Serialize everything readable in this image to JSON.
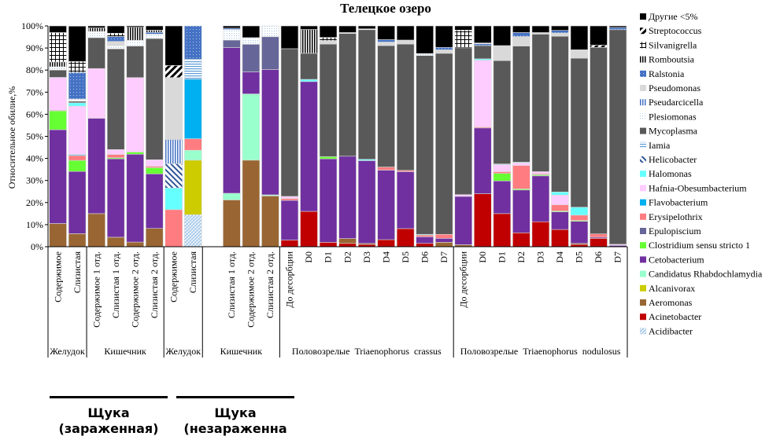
{
  "chart_data": {
    "type": "bar",
    "stacked": true,
    "title": "Телецкое озеро",
    "ylabel": "Относительное обилие,%",
    "xlabel": "",
    "ylim": [
      0,
      100
    ],
    "yticks": [
      "0%",
      "10%",
      "20%",
      "30%",
      "40%",
      "50%",
      "60%",
      "70%",
      "80%",
      "90%",
      "100%"
    ],
    "legend_position": "right",
    "legend": [
      {
        "name": "Другие <5%",
        "color": "#000000",
        "pattern": "solid"
      },
      {
        "name": "Streptococcus",
        "color": "#000000",
        "pattern": "diag"
      },
      {
        "name": "Silvanigrella",
        "color": "#000000",
        "pattern": "grid"
      },
      {
        "name": "Romboutsia",
        "color": "#000000",
        "pattern": "vlines"
      },
      {
        "name": "Ralstonia",
        "color": "#4472c4",
        "pattern": "dots"
      },
      {
        "name": "Pseudomonas",
        "color": "#d9d9d9",
        "pattern": "solid"
      },
      {
        "name": "Pseudarcicella",
        "color": "#4472c4",
        "pattern": "vlines"
      },
      {
        "name": "Plesiomonas",
        "color": "#9dc3e6",
        "pattern": "sparsedots"
      },
      {
        "name": "Mycoplasma",
        "color": "#595959",
        "pattern": "solid"
      },
      {
        "name": "Iamia",
        "color": "#5b9bd5",
        "pattern": "hlines"
      },
      {
        "name": "Helicobacter",
        "color": "#2f5597",
        "pattern": "backdiag"
      },
      {
        "name": "Halomonas",
        "color": "#66ffff",
        "pattern": "solid"
      },
      {
        "name": "Hafnia-Obesumbacterium",
        "color": "#ffccff",
        "pattern": "solid"
      },
      {
        "name": "Flavobacterium",
        "color": "#00b0f0",
        "pattern": "solid"
      },
      {
        "name": "Erysipelothrix",
        "color": "#ff7c80",
        "pattern": "solid"
      },
      {
        "name": "Epulopiscium",
        "color": "#666699",
        "pattern": "solid"
      },
      {
        "name": "Clostridium sensu stricto 1",
        "color": "#66ff33",
        "pattern": "solid"
      },
      {
        "name": "Cetobacterium",
        "color": "#7030a0",
        "pattern": "solid"
      },
      {
        "name": "Candidatus Rhabdochlamydia",
        "color": "#99ffcc",
        "pattern": "solid"
      },
      {
        "name": "Alcanivorax",
        "color": "#cccc00",
        "pattern": "solid"
      },
      {
        "name": "Aeromonas",
        "color": "#996633",
        "pattern": "solid"
      },
      {
        "name": "Acinetobacter",
        "color": "#c00000",
        "pattern": "solid"
      },
      {
        "name": "Acidibacter",
        "color": "#9dc3e6",
        "pattern": "crosshatch"
      }
    ],
    "categories": [
      "Содержимое",
      "Слизистая",
      "Содержимое 1 отд.",
      "Слизистая 1 отд.",
      "Содержимое 2 отд.",
      "Слизистая 2 отд.",
      "Содержимое",
      "Слизистая",
      "",
      "Слизистая 1 отд.",
      "Содержимое 2 отд.",
      "Слизистая 2 отд.",
      "До десорбции",
      "D0",
      "D1",
      "D2",
      "D3",
      "D4",
      "D5",
      "D6",
      "D7",
      "До десорбции",
      "D0",
      "D1",
      "D2",
      "D3",
      "D4",
      "D5",
      "D6",
      "D7"
    ],
    "groups": [
      {
        "label": "Желудок",
        "count": 2
      },
      {
        "label": "Кишечник",
        "count": 4
      },
      {
        "label": "Желудок",
        "count": 2
      },
      {
        "label": "Кишечник",
        "count": 4
      },
      {
        "label": "Половозрелые  Triaenophorus  crassus",
        "count": 9
      },
      {
        "label": "Половозрелые  Triaenophorus  nodulosus",
        "count": 9
      }
    ],
    "bars": [
      [
        [
          "Aeromonas",
          10.5
        ],
        [
          "Cetobacterium",
          42.5
        ],
        [
          "Clostridium sensu stricto 1",
          8.5
        ],
        [
          "Erysipelothrix",
          0.3
        ],
        [
          "Hafnia-Obesumbacterium",
          14.9
        ],
        [
          "Mycoplasma",
          3.3
        ],
        [
          "Plesiomonas",
          1.5
        ],
        [
          "Romboutsia",
          2.2
        ],
        [
          "Silvanigrella",
          13.3
        ],
        [
          "Другие <5%",
          3.0
        ]
      ],
      [
        [
          "Aeromonas",
          5.9
        ],
        [
          "Cetobacterium",
          28.2
        ],
        [
          "Clostridium sensu stricto 1",
          5.0
        ],
        [
          "Erysipelothrix",
          2.2
        ],
        [
          "Flavobacterium",
          0.4
        ],
        [
          "Hafnia-Obesumbacterium",
          22.0
        ],
        [
          "Halomonas",
          1.5
        ],
        [
          "Mycoplasma",
          0.7
        ],
        [
          "Plesiomonas",
          1.0
        ],
        [
          "Ralstonia",
          12.0
        ],
        [
          "Silvanigrella",
          5.0
        ],
        [
          "Другие <5%",
          16.0
        ]
      ],
      [
        [
          "Aeromonas",
          15.0
        ],
        [
          "Cetobacterium",
          43.2
        ],
        [
          "Hafnia-Obesumbacterium",
          22.5
        ],
        [
          "Mycoplasma",
          14.0
        ],
        [
          "Plesiomonas",
          2.8
        ],
        [
          "Romboutsia",
          1.6
        ],
        [
          "Другие <5%",
          0.9
        ]
      ],
      [
        [
          "Aeromonas",
          4.3
        ],
        [
          "Cetobacterium",
          35.5
        ],
        [
          "Clostridium sensu stricto 1",
          0.5
        ],
        [
          "Erysipelothrix",
          1.5
        ],
        [
          "Hafnia-Obesumbacterium",
          2.2
        ],
        [
          "Mycoplasma",
          45.6
        ],
        [
          "Plesiomonas",
          1.4
        ],
        [
          "Pseudomonas",
          2.0
        ],
        [
          "Ralstonia",
          2.2
        ],
        [
          "Silvanigrella",
          1.5
        ],
        [
          "Другие <5%",
          3.3
        ]
      ],
      [
        [
          "Aeromonas",
          2.1
        ],
        [
          "Cetobacterium",
          39.8
        ],
        [
          "Clostridium sensu stricto 1",
          1.0
        ],
        [
          "Hafnia-Obesumbacterium",
          33.7
        ],
        [
          "Mycoplasma",
          14.3
        ],
        [
          "Plesiomonas",
          2.6
        ],
        [
          "Romboutsia",
          5.9
        ],
        [
          "Другие <5%",
          0.6
        ]
      ],
      [
        [
          "Aeromonas",
          8.3
        ],
        [
          "Cetobacterium",
          24.7
        ],
        [
          "Clostridium sensu stricto 1",
          2.8
        ],
        [
          "Erysipelothrix",
          0.6
        ],
        [
          "Hafnia-Obesumbacterium",
          3.0
        ],
        [
          "Mycoplasma",
          54.9
        ],
        [
          "Plesiomonas",
          2.0
        ],
        [
          "Ralstonia",
          0.8
        ],
        [
          "Romboutsia",
          1.0
        ],
        [
          "Другие <5%",
          1.9
        ]
      ],
      [
        [
          "Erysipelothrix",
          16.8
        ],
        [
          "Halomonas",
          9.8
        ],
        [
          "Helicobacter",
          11.0
        ],
        [
          "Pseudarcicella",
          11.0
        ],
        [
          "Pseudomonas",
          28.0
        ],
        [
          "Streptococcus",
          5.5
        ],
        [
          "Другие <5%",
          17.9
        ]
      ],
      [
        [
          "Acidibacter",
          14.5
        ],
        [
          "Alcanivorax",
          24.7
        ],
        [
          "Candidatus Rhabdochlamydia",
          4.5
        ],
        [
          "Erysipelothrix",
          5.2
        ],
        [
          "Flavobacterium",
          27.0
        ],
        [
          "Iamia",
          9.0
        ],
        [
          "Ralstonia",
          15.1
        ]
      ],
      [],
      [
        [
          "Aeromonas",
          21.2
        ],
        [
          "Candidatus Rhabdochlamydia",
          3.0
        ],
        [
          "Cetobacterium",
          66.0
        ],
        [
          "Epulopiscium",
          3.4
        ],
        [
          "Plesiomonas",
          4.8
        ],
        [
          "Ralstonia",
          0.6
        ],
        [
          "Другие <5%",
          1.0
        ]
      ],
      [
        [
          "Aeromonas",
          39.2
        ],
        [
          "Candidatus Rhabdochlamydia",
          30.0
        ],
        [
          "Cetobacterium",
          10.0
        ],
        [
          "Epulopiscium",
          12.5
        ],
        [
          "Plesiomonas",
          3.0
        ],
        [
          "Другие <5%",
          5.3
        ]
      ],
      [
        [
          "Aeromonas",
          23.0
        ],
        [
          "Candidatus Rhabdochlamydia",
          0.5
        ],
        [
          "Cetobacterium",
          56.8
        ],
        [
          "Epulopiscium",
          14.8
        ],
        [
          "Plesiomonas",
          4.9
        ]
      ],
      [
        [
          "Acinetobacter",
          3.0
        ],
        [
          "Cetobacterium",
          18.0
        ],
        [
          "Erysipelothrix",
          0.8
        ],
        [
          "Hafnia-Obesumbacterium",
          1.0
        ],
        [
          "Mycoplasma",
          66.9
        ],
        [
          "Другие <5%",
          10.3
        ]
      ],
      [
        [
          "Acinetobacter",
          16.0
        ],
        [
          "Cetobacterium",
          58.8
        ],
        [
          "Halomonas",
          1.0
        ],
        [
          "Mycoplasma",
          11.8
        ],
        [
          "Romboutsia",
          10.8
        ],
        [
          "Другие <5%",
          1.6
        ]
      ],
      [
        [
          "Acinetobacter",
          2.0
        ],
        [
          "Cetobacterium",
          37.8
        ],
        [
          "Clostridium sensu stricto 1",
          1.0
        ],
        [
          "Mycoplasma",
          51.0
        ],
        [
          "Pseudomonas",
          1.5
        ],
        [
          "Silvanigrella",
          1.5
        ],
        [
          "Другие <5%",
          5.2
        ]
      ],
      [
        [
          "Acinetobacter",
          1.5
        ],
        [
          "Aeromonas",
          2.2
        ],
        [
          "Cetobacterium",
          37.3
        ],
        [
          "Mycoplasma",
          55.6
        ],
        [
          "Plesiomonas",
          0.4
        ],
        [
          "Другие <5%",
          3.0
        ]
      ],
      [
        [
          "Acinetobacter",
          1.0
        ],
        [
          "Aeromonas",
          0.5
        ],
        [
          "Cetobacterium",
          37.5
        ],
        [
          "Halomonas",
          0.6
        ],
        [
          "Mycoplasma",
          58.7
        ],
        [
          "Plesiomonas",
          0.4
        ],
        [
          "Другие <5%",
          1.3
        ]
      ],
      [
        [
          "Acinetobacter",
          3.2
        ],
        [
          "Cetobacterium",
          31.5
        ],
        [
          "Erysipelothrix",
          1.4
        ],
        [
          "Mycoplasma",
          55.0
        ],
        [
          "Pseudomonas",
          1.6
        ],
        [
          "Ralstonia",
          1.1
        ],
        [
          "Другие <5%",
          6.2
        ]
      ],
      [
        [
          "Acinetobacter",
          8.2
        ],
        [
          "Cetobacterium",
          25.8
        ],
        [
          "Erysipelothrix",
          0.6
        ],
        [
          "Mycoplasma",
          57.2
        ],
        [
          "Pseudomonas",
          1.8
        ],
        [
          "Другие <5%",
          6.4
        ]
      ],
      [
        [
          "Acinetobacter",
          1.5
        ],
        [
          "Cetobacterium",
          3.0
        ],
        [
          "Erysipelothrix",
          0.8
        ],
        [
          "Halomonas",
          0.3
        ],
        [
          "Mycoplasma",
          81.0
        ],
        [
          "Plesiomonas",
          0.9
        ],
        [
          "Другие <5%",
          12.5
        ]
      ],
      [
        [
          "Aeromonas",
          2.0
        ],
        [
          "Cetobacterium",
          1.8
        ],
        [
          "Erysipelothrix",
          1.8
        ],
        [
          "Mycoplasma",
          82.0
        ],
        [
          "Pseudomonas",
          1.6
        ],
        [
          "Ralstonia",
          1.1
        ],
        [
          "Другие <5%",
          9.7
        ]
      ],
      [
        [
          "Aeromonas",
          0.9
        ],
        [
          "Cetobacterium",
          21.9
        ],
        [
          "Hafnia-Obesumbacterium",
          0.8
        ],
        [
          "Mycoplasma",
          66.5
        ],
        [
          "Silvanigrella",
          8.0
        ],
        [
          "Другие <5%",
          1.9
        ]
      ],
      [
        [
          "Acinetobacter",
          24.0
        ],
        [
          "Cetobacterium",
          29.8
        ],
        [
          "Erysipelothrix",
          0.4
        ],
        [
          "Hafnia-Obesumbacterium",
          30.3
        ],
        [
          "Halomonas",
          0.6
        ],
        [
          "Mycoplasma",
          6.0
        ],
        [
          "Ralstonia",
          0.8
        ],
        [
          "Plesiomonas",
          0.4
        ],
        [
          "Другие <5%",
          7.7
        ]
      ],
      [
        [
          "Acinetobacter",
          15.0
        ],
        [
          "Cetobacterium",
          14.8
        ],
        [
          "Clostridium sensu stricto 1",
          3.4
        ],
        [
          "Erysipelothrix",
          0.8
        ],
        [
          "Hafnia-Obesumbacterium",
          3.2
        ],
        [
          "Halomonas",
          0.3
        ],
        [
          "Mycoplasma",
          46.8
        ],
        [
          "Pseudomonas",
          6.8
        ],
        [
          "Другие <5%",
          8.9
        ]
      ],
      [
        [
          "Acinetobacter",
          6.3
        ],
        [
          "Cetobacterium",
          19.4
        ],
        [
          "Clostridium sensu stricto 1",
          0.5
        ],
        [
          "Erysipelothrix",
          10.6
        ],
        [
          "Hafnia-Obesumbacterium",
          1.2
        ],
        [
          "Halomonas",
          0.3
        ],
        [
          "Mycoplasma",
          52.6
        ],
        [
          "Pseudomonas",
          4.3
        ],
        [
          "Ralstonia",
          1.8
        ],
        [
          "Другие <5%",
          3.0
        ]
      ],
      [
        [
          "Acinetobacter",
          11.3
        ],
        [
          "Cetobacterium",
          20.8
        ],
        [
          "Clostridium sensu stricto 1",
          0.5
        ],
        [
          "Erysipelothrix",
          0.4
        ],
        [
          "Hafnia-Obesumbacterium",
          1.0
        ],
        [
          "Mycoplasma",
          62.3
        ],
        [
          "Pseudomonas",
          0.7
        ],
        [
          "Другие <5%",
          3.0
        ]
      ],
      [
        [
          "Acinetobacter",
          7.8
        ],
        [
          "Cetobacterium",
          8.0
        ],
        [
          "Clostridium sensu stricto 1",
          0.4
        ],
        [
          "Erysipelothrix",
          2.8
        ],
        [
          "Hafnia-Obesumbacterium",
          4.4
        ],
        [
          "Halomonas",
          1.4
        ],
        [
          "Mycoplasma",
          70.5
        ],
        [
          "Pseudomonas",
          1.5
        ],
        [
          "Ralstonia",
          1.2
        ],
        [
          "Другие <5%",
          2.0
        ]
      ],
      [
        [
          "Acinetobacter",
          1.0
        ],
        [
          "Aeromonas",
          0.5
        ],
        [
          "Cetobacterium",
          10.0
        ],
        [
          "Clostridium sensu stricto 1",
          0.4
        ],
        [
          "Erysipelothrix",
          2.4
        ],
        [
          "Halomonas",
          3.6
        ],
        [
          "Mycoplasma",
          67.5
        ],
        [
          "Pseudomonas",
          3.8
        ],
        [
          "Другие <5%",
          10.8
        ]
      ],
      [
        [
          "Acinetobacter",
          3.8
        ],
        [
          "Cetobacterium",
          0.5
        ],
        [
          "Erysipelothrix",
          1.5
        ],
        [
          "Mycoplasma",
          84.5
        ],
        [
          "Streptococcus",
          1.0
        ],
        [
          "Другие <5%",
          8.7
        ]
      ],
      [
        [
          "Cetobacterium",
          0.6
        ],
        [
          "Hafnia-Obesumbacterium",
          0.5
        ],
        [
          "Mycoplasma",
          97.2
        ],
        [
          "Ralstonia",
          1.0
        ],
        [
          "Другие <5%",
          0.7
        ]
      ]
    ]
  },
  "bottom_labels": [
    {
      "text_line1": "Щука",
      "text_line2": "(зараженная)"
    },
    {
      "text_line1": "Щука",
      "text_line2": "(незараженна"
    }
  ]
}
